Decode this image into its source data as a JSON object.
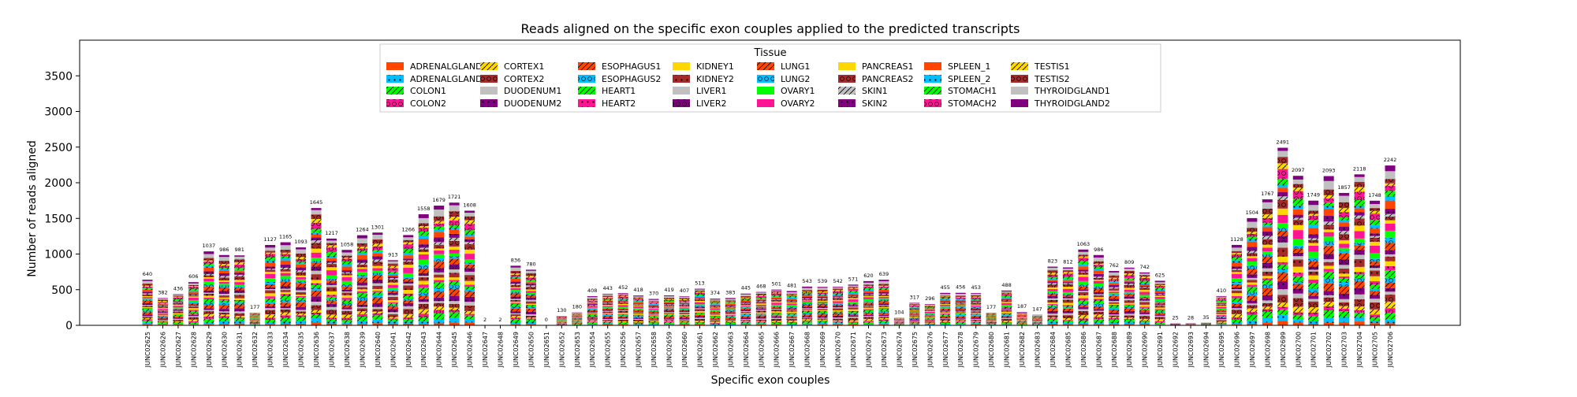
{
  "chart_data": {
    "type": "bar",
    "stacked": true,
    "title": "Reads aligned on the specific exon couples applied to the predicted transcripts",
    "xlabel": "Specific exon couples",
    "ylabel": "Number of reads aligned",
    "ylim": [
      0,
      4000
    ],
    "yticks": [
      0,
      500,
      1000,
      1500,
      2000,
      2500,
      3000,
      3500
    ],
    "legend_title": "Tissue",
    "legend_placement": "top-center",
    "categories": [
      "JUNC02625",
      "JUNC02626",
      "JUNC02627",
      "JUNC02628",
      "JUNC02629",
      "JUNC02630",
      "JUNC02631",
      "JUNC02632",
      "JUNC02633",
      "JUNC02634",
      "JUNC02635",
      "JUNC02636",
      "JUNC02637",
      "JUNC02638",
      "JUNC02639",
      "JUNC02640",
      "JUNC02641",
      "JUNC02642",
      "JUNC02643",
      "JUNC02644",
      "JUNC02645",
      "JUNC02646",
      "JUNC02647",
      "JUNC02648",
      "JUNC02649",
      "JUNC02650",
      "JUNC02651",
      "JUNC02652",
      "JUNC02653",
      "JUNC02654",
      "JUNC02655",
      "JUNC02656",
      "JUNC02657",
      "JUNC02658",
      "JUNC02659",
      "JUNC02660",
      "JUNC02661",
      "JUNC02662",
      "JUNC02663",
      "JUNC02664",
      "JUNC02665",
      "JUNC02666",
      "JUNC02667",
      "JUNC02668",
      "JUNC02669",
      "JUNC02670",
      "JUNC02671",
      "JUNC02672",
      "JUNC02673",
      "JUNC02674",
      "JUNC02675",
      "JUNC02676",
      "JUNC02677",
      "JUNC02678",
      "JUNC02679",
      "JUNC02680",
      "JUNC02681",
      "JUNC02682",
      "JUNC02683",
      "JUNC02684",
      "JUNC02685",
      "JUNC02686",
      "JUNC02687",
      "JUNC02688",
      "JUNC02689",
      "JUNC02690",
      "JUNC02691",
      "JUNC02692",
      "JUNC02693",
      "JUNC02694",
      "JUNC02695",
      "JUNC02696",
      "JUNC02697",
      "JUNC02698",
      "JUNC02699",
      "JUNC02700",
      "JUNC02701",
      "JUNC02702",
      "JUNC02703",
      "JUNC02704",
      "JUNC02705",
      "JUNC02706"
    ],
    "totals": [
      640,
      382,
      436,
      606,
      1037,
      986,
      981,
      177,
      1127,
      1165,
      1093,
      1645,
      1217,
      1058,
      1264,
      1301,
      913,
      1266,
      1558,
      1679,
      1721,
      1608,
      2,
      2,
      836,
      780,
      0,
      130,
      180,
      408,
      443,
      452,
      418,
      370,
      419,
      407,
      513,
      374,
      383,
      445,
      468,
      501,
      481,
      543,
      539,
      542,
      571,
      620,
      639,
      104,
      317,
      296,
      455,
      456,
      453,
      177,
      488,
      187,
      147,
      823,
      812,
      1063,
      986,
      762,
      809,
      742,
      625,
      25,
      28,
      35,
      410,
      1128,
      1504,
      1767,
      2491,
      2097,
      1749,
      2093,
      1857,
      2118,
      1748,
      2242
    ],
    "series": [
      {
        "name": "ADRENALGLAND1",
        "color": "#ff4500",
        "hatch": "none"
      },
      {
        "name": "ADRENALGLAND2",
        "color": "#00bfff",
        "hatch": "dots"
      },
      {
        "name": "COLON1",
        "color": "#00ff00",
        "hatch": "slash"
      },
      {
        "name": "COLON2",
        "color": "#ff1493",
        "hatch": "circles"
      },
      {
        "name": "CORTEX1",
        "color": "#ffd700",
        "hatch": "slash"
      },
      {
        "name": "CORTEX2",
        "color": "#a52a2a",
        "hatch": "circles"
      },
      {
        "name": "DUODENUM1",
        "color": "#c0c0c0",
        "hatch": "none"
      },
      {
        "name": "DUODENUM2",
        "color": "#800080",
        "hatch": "dots"
      },
      {
        "name": "ESOPHAGUS1",
        "color": "#ff4500",
        "hatch": "slash"
      },
      {
        "name": "ESOPHAGUS2",
        "color": "#00bfff",
        "hatch": "circles"
      },
      {
        "name": "HEART1",
        "color": "#00ff00",
        "hatch": "slash"
      },
      {
        "name": "HEART2",
        "color": "#ff1493",
        "hatch": "dots"
      },
      {
        "name": "KIDNEY1",
        "color": "#ffd700",
        "hatch": "none"
      },
      {
        "name": "KIDNEY2",
        "color": "#a52a2a",
        "hatch": "dots"
      },
      {
        "name": "LIVER1",
        "color": "#c0c0c0",
        "hatch": "none"
      },
      {
        "name": "LIVER2",
        "color": "#800080",
        "hatch": "circles"
      },
      {
        "name": "LUNG1",
        "color": "#ff4500",
        "hatch": "slash"
      },
      {
        "name": "LUNG2",
        "color": "#00bfff",
        "hatch": "circles"
      },
      {
        "name": "OVARY1",
        "color": "#00ff00",
        "hatch": "none"
      },
      {
        "name": "OVARY2",
        "color": "#ff1493",
        "hatch": "none"
      },
      {
        "name": "PANCREAS1",
        "color": "#ffd700",
        "hatch": "none"
      },
      {
        "name": "PANCREAS2",
        "color": "#a52a2a",
        "hatch": "circles"
      },
      {
        "name": "SKIN1",
        "color": "#c0c0c0",
        "hatch": "slash"
      },
      {
        "name": "SKIN2",
        "color": "#800080",
        "hatch": "dots"
      },
      {
        "name": "SPLEEN_1",
        "color": "#ff4500",
        "hatch": "none"
      },
      {
        "name": "SPLEEN_2",
        "color": "#00bfff",
        "hatch": "dots"
      },
      {
        "name": "STOMACH1",
        "color": "#00ff00",
        "hatch": "slash"
      },
      {
        "name": "STOMACH2",
        "color": "#ff1493",
        "hatch": "circles"
      },
      {
        "name": "TESTIS1",
        "color": "#ffd700",
        "hatch": "slash"
      },
      {
        "name": "TESTIS2",
        "color": "#a52a2a",
        "hatch": "circles"
      },
      {
        "name": "THYROIDGLAND1",
        "color": "#c0c0c0",
        "hatch": "none"
      },
      {
        "name": "THYROIDGLAND2",
        "color": "#800080",
        "hatch": "none"
      }
    ]
  }
}
